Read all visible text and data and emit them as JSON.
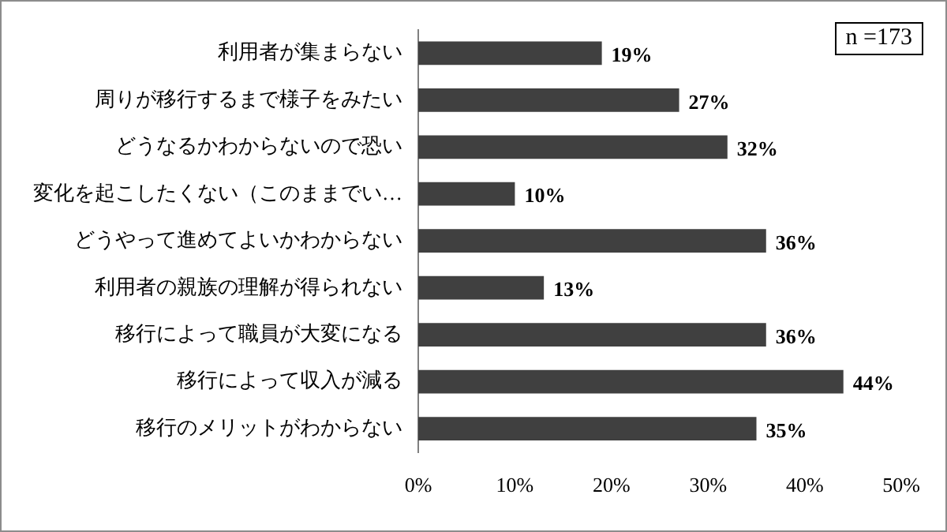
{
  "chart_data": {
    "type": "bar",
    "orientation": "horizontal",
    "categories": [
      "利用者が集まらない",
      "周りが移行するまで様子をみたい",
      "どうなるかわからないので恐い",
      "変化を起こしたくない（このままでい…",
      "どうやって進めてよいかわからない",
      "利用者の親族の理解が得られない",
      "移行によって職員が大変になる",
      "移行によって収入が減る",
      "移行のメリットがわからない"
    ],
    "values": [
      19,
      27,
      32,
      10,
      36,
      13,
      36,
      44,
      35
    ],
    "value_labels": [
      "19%",
      "27%",
      "32%",
      "10%",
      "36%",
      "13%",
      "36%",
      "44%",
      "35%"
    ],
    "color": "#404040",
    "xlim": [
      0,
      50
    ],
    "xticks": [
      {
        "value": 0,
        "label": "0%"
      },
      {
        "value": 10,
        "label": "10%"
      },
      {
        "value": 20,
        "label": "20%"
      },
      {
        "value": 30,
        "label": "30%"
      },
      {
        "value": 40,
        "label": "40%"
      },
      {
        "value": 50,
        "label": "50%"
      }
    ],
    "annotations": [
      "n =173"
    ],
    "grid": false,
    "legend": false
  }
}
